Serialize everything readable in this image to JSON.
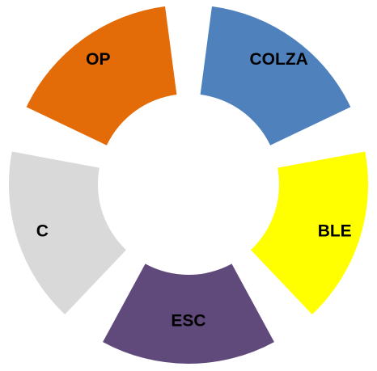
{
  "nodes": [
    {
      "label": "COLZA",
      "color": "#4f81bd"
    },
    {
      "label": "BLE",
      "color": "#ffff00"
    },
    {
      "label": "ESC",
      "color": "#604a7b"
    },
    {
      "label": "C",
      "color": "#d9d9d9"
    },
    {
      "label": "OP",
      "color": "#e36c09"
    }
  ]
}
